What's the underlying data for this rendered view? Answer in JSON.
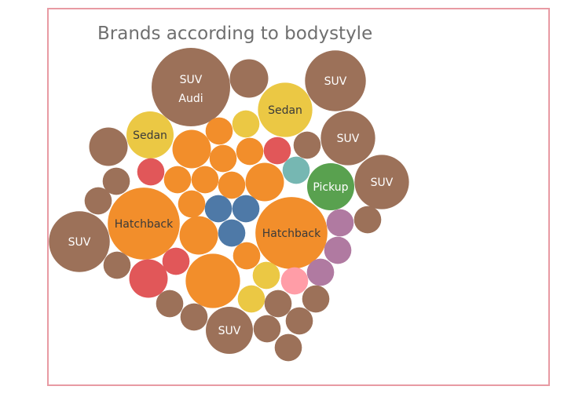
{
  "chart_data": {
    "type": "packed-bubble",
    "title": "Brands according to bodystyle",
    "colors": {
      "SUV": "#9c7159",
      "Sedan": "#ebc844",
      "Hatchback": "#f28e2b",
      "Wagon": "#e15759",
      "Convertible": "#76b7b2",
      "Pickup": "#59a14f",
      "Hardtop": "#4e79a7",
      "Minivan": "#b07aa1",
      "Coupe": "#ff9da7"
    },
    "bubbles": [
      {
        "style": "SUV",
        "label": "SUV",
        "sublabel": "Audi",
        "size": 25
      },
      {
        "style": "SUV",
        "label": "",
        "sublabel": "",
        "size": 6
      },
      {
        "style": "SUV",
        "label": "SUV",
        "sublabel": "",
        "size": 15
      },
      {
        "style": "Sedan",
        "label": "Sedan",
        "sublabel": "",
        "size": 12
      },
      {
        "style": "SUV",
        "label": "SUV",
        "sublabel": "",
        "size": 12
      },
      {
        "style": "Sedan",
        "label": "Sedan",
        "sublabel": "",
        "size": 9
      },
      {
        "style": "Hatchback",
        "label": "",
        "sublabel": "",
        "size": 3
      },
      {
        "style": "Sedan",
        "label": "",
        "sublabel": "",
        "size": 3
      },
      {
        "style": "SUV",
        "label": "",
        "sublabel": "",
        "size": 6
      },
      {
        "style": "Hatchback",
        "label": "",
        "sublabel": "",
        "size": 6
      },
      {
        "style": "Hatchback",
        "label": "",
        "sublabel": "",
        "size": 3
      },
      {
        "style": "Hatchback",
        "label": "",
        "sublabel": "",
        "size": 3
      },
      {
        "style": "Wagon",
        "label": "",
        "sublabel": "",
        "size": 3
      },
      {
        "style": "SUV",
        "label": "",
        "sublabel": "",
        "size": 3
      },
      {
        "style": "Wagon",
        "label": "",
        "sublabel": "",
        "size": 3
      },
      {
        "style": "SUV",
        "label": "",
        "sublabel": "",
        "size": 3
      },
      {
        "style": "Hatchback",
        "label": "",
        "sublabel": "",
        "size": 3
      },
      {
        "style": "Hatchback",
        "label": "",
        "sublabel": "",
        "size": 3
      },
      {
        "style": "Hatchback",
        "label": "",
        "sublabel": "",
        "size": 3
      },
      {
        "style": "Hatchback",
        "label": "",
        "sublabel": "",
        "size": 6
      },
      {
        "style": "Convertible",
        "label": "",
        "sublabel": "",
        "size": 3
      },
      {
        "style": "Pickup",
        "label": "Pickup",
        "sublabel": "",
        "size": 9
      },
      {
        "style": "SUV",
        "label": "SUV",
        "sublabel": "",
        "size": 12
      },
      {
        "style": "SUV",
        "label": "",
        "sublabel": "",
        "size": 3
      },
      {
        "style": "Hatchback",
        "label": "",
        "sublabel": "",
        "size": 3
      },
      {
        "style": "Hardtop",
        "label": "",
        "sublabel": "",
        "size": 3
      },
      {
        "style": "Hardtop",
        "label": "",
        "sublabel": "",
        "size": 3
      },
      {
        "style": "Hatchback",
        "label": "Hatchback",
        "sublabel": "",
        "size": 21
      },
      {
        "style": "Hatchback",
        "label": "Hatchback",
        "sublabel": "",
        "size": 21
      },
      {
        "style": "SUV",
        "label": "SUV",
        "sublabel": "",
        "size": 15
      },
      {
        "style": "Hardtop",
        "label": "",
        "sublabel": "",
        "size": 3
      },
      {
        "style": "Hatchback",
        "label": "",
        "sublabel": "",
        "size": 6
      },
      {
        "style": "Minivan",
        "label": "",
        "sublabel": "",
        "size": 3
      },
      {
        "style": "SUV",
        "label": "",
        "sublabel": "",
        "size": 3
      },
      {
        "style": "Minivan",
        "label": "",
        "sublabel": "",
        "size": 3
      },
      {
        "style": "SUV",
        "label": "",
        "sublabel": "",
        "size": 3
      },
      {
        "style": "Wagon",
        "label": "",
        "sublabel": "",
        "size": 3
      },
      {
        "style": "Hatchback",
        "label": "",
        "sublabel": "",
        "size": 3
      },
      {
        "style": "Wagon",
        "label": "",
        "sublabel": "",
        "size": 6
      },
      {
        "style": "Hatchback",
        "label": "",
        "sublabel": "",
        "size": 12
      },
      {
        "style": "Sedan",
        "label": "",
        "sublabel": "",
        "size": 3
      },
      {
        "style": "Coupe",
        "label": "",
        "sublabel": "",
        "size": 3
      },
      {
        "style": "Minivan",
        "label": "",
        "sublabel": "",
        "size": 3
      },
      {
        "style": "Sedan",
        "label": "",
        "sublabel": "",
        "size": 3
      },
      {
        "style": "SUV",
        "label": "",
        "sublabel": "",
        "size": 3
      },
      {
        "style": "SUV",
        "label": "",
        "sublabel": "",
        "size": 3
      },
      {
        "style": "SUV",
        "label": "",
        "sublabel": "",
        "size": 3
      },
      {
        "style": "SUV",
        "label": "",
        "sublabel": "",
        "size": 3
      },
      {
        "style": "SUV",
        "label": "SUV",
        "sublabel": "",
        "size": 9
      },
      {
        "style": "SUV",
        "label": "",
        "sublabel": "",
        "size": 3
      },
      {
        "style": "SUV",
        "label": "",
        "sublabel": "",
        "size": 3
      },
      {
        "style": "SUV",
        "label": "",
        "sublabel": "",
        "size": 3
      }
    ]
  }
}
